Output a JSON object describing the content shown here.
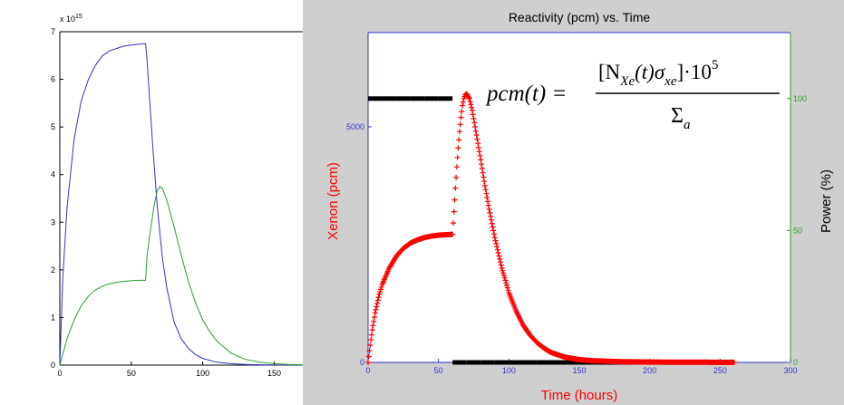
{
  "chart_data": [
    {
      "type": "line",
      "title": "",
      "xlabel": "",
      "ylabel": "",
      "y_exponent": "x 10",
      "y_exponent_power": "15",
      "xlim": [
        0,
        170
      ],
      "ylim": [
        0,
        7
      ],
      "x_ticks": [
        "0",
        "50",
        "100",
        "150"
      ],
      "y_ticks": [
        "0",
        "1",
        "2",
        "3",
        "4",
        "5",
        "6",
        "7"
      ],
      "grid": false,
      "series": [
        {
          "color": "#3333cc",
          "x": [
            0,
            2,
            5,
            10,
            15,
            20,
            25,
            30,
            35,
            40,
            45,
            50,
            55,
            60,
            61,
            63,
            65,
            68,
            70,
            72,
            75,
            80,
            85,
            90,
            95,
            100,
            110,
            120,
            130,
            140,
            150,
            160,
            170
          ],
          "y": [
            0,
            1.8,
            3.3,
            4.75,
            5.55,
            6.0,
            6.3,
            6.5,
            6.6,
            6.65,
            6.7,
            6.72,
            6.74,
            6.75,
            6.4,
            5.5,
            4.6,
            3.4,
            2.75,
            2.2,
            1.6,
            0.9,
            0.55,
            0.35,
            0.22,
            0.14,
            0.06,
            0.03,
            0.015,
            0.008,
            0.004,
            0.002,
            0.001
          ]
        },
        {
          "color": "#2a9d2a",
          "x": [
            0,
            5,
            10,
            15,
            20,
            25,
            30,
            35,
            40,
            45,
            50,
            55,
            60,
            61,
            63,
            66,
            68,
            70,
            72,
            75,
            80,
            85,
            90,
            95,
            100,
            105,
            110,
            120,
            130,
            140,
            150,
            160,
            170
          ],
          "y": [
            0,
            0.55,
            0.95,
            1.25,
            1.45,
            1.58,
            1.66,
            1.71,
            1.74,
            1.76,
            1.77,
            1.78,
            1.78,
            2.3,
            2.75,
            3.35,
            3.65,
            3.75,
            3.7,
            3.45,
            2.9,
            2.3,
            1.75,
            1.3,
            0.95,
            0.7,
            0.5,
            0.25,
            0.12,
            0.06,
            0.03,
            0.015,
            0.008
          ]
        }
      ]
    },
    {
      "type": "scatter",
      "title": "Reactivity (pcm) vs. Time",
      "xlabel": "Time (hours)",
      "ylabel": "Xenon (pcm)",
      "y2label": "Power (%)",
      "xlim": [
        0,
        300
      ],
      "ylim": [
        0,
        7000
      ],
      "y2lim": [
        0,
        125
      ],
      "x_ticks": [
        "0",
        "50",
        "100",
        "150",
        "200",
        "250",
        "300"
      ],
      "y_ticks": [
        "0",
        "5000"
      ],
      "y2_ticks": [
        "0",
        "50",
        "100"
      ],
      "grid": false,
      "series": [
        {
          "color": "#ff0000",
          "marker": "+",
          "x": [
            0,
            1,
            2,
            3,
            5,
            8,
            10,
            15,
            20,
            25,
            30,
            35,
            40,
            45,
            50,
            55,
            60,
            61,
            62,
            63,
            64,
            65,
            66,
            67,
            68,
            69,
            70,
            72,
            74,
            76,
            78,
            80,
            83,
            86,
            90,
            95,
            100,
            105,
            110,
            115,
            120,
            125,
            130,
            140,
            150,
            160,
            180,
            200,
            220,
            240,
            260
          ],
          "y": [
            0,
            250,
            480,
            690,
            1050,
            1450,
            1650,
            2000,
            2250,
            2420,
            2530,
            2600,
            2650,
            2680,
            2700,
            2710,
            2720,
            3200,
            3700,
            4150,
            4550,
            4900,
            5200,
            5450,
            5600,
            5680,
            5700,
            5600,
            5350,
            5000,
            4650,
            4300,
            3750,
            3250,
            2650,
            2000,
            1480,
            1100,
            800,
            580,
            420,
            300,
            210,
            110,
            60,
            35,
            15,
            8,
            5,
            3,
            2
          ]
        },
        {
          "color": "#000000",
          "marker": "*",
          "axis": "y2",
          "x": [
            0,
            10,
            20,
            30,
            40,
            50,
            60,
            60,
            70,
            80,
            90,
            100,
            120,
            140,
            160,
            180,
            200,
            220,
            240,
            260
          ],
          "y": [
            100,
            100,
            100,
            100,
            100,
            100,
            100,
            0,
            0,
            0,
            0,
            0,
            0,
            0,
            0,
            0,
            0,
            0,
            0,
            0
          ]
        }
      ],
      "annotation": {
        "lhs": "pcm(t) =",
        "numerator_open": "[N",
        "numerator_sub1": "Xe",
        "numerator_mid": "(t)σ",
        "numerator_sub2": "xe",
        "numerator_close": "]·10",
        "numerator_sup": "5",
        "denominator": "Σ",
        "denominator_sub": "a"
      }
    }
  ]
}
